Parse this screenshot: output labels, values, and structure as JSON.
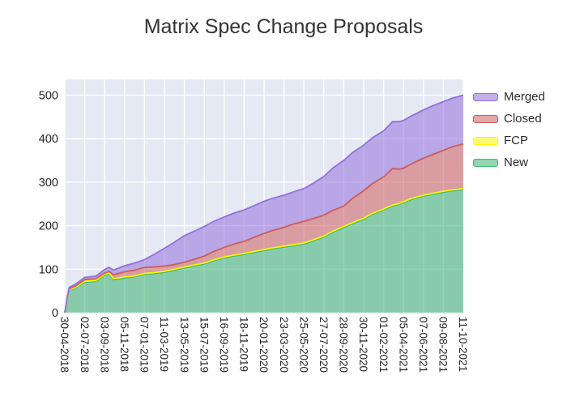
{
  "title": "Matrix Spec Change Proposals",
  "chart_data": {
    "type": "area",
    "stacked": true,
    "title": "Matrix Spec Change Proposals",
    "xlabel": "",
    "ylabel": "",
    "x": [
      "30-04-2018",
      "07-05-2018",
      "14-05-2018",
      "04-06-2018",
      "02-07-2018",
      "06-08-2018",
      "03-09-2018",
      "17-09-2018",
      "01-10-2018",
      "05-11-2018",
      "03-12-2018",
      "07-01-2019",
      "04-02-2019",
      "11-03-2019",
      "08-04-2019",
      "13-05-2019",
      "10-06-2019",
      "15-07-2019",
      "12-08-2019",
      "16-09-2019",
      "14-10-2019",
      "18-11-2019",
      "16-12-2019",
      "20-01-2020",
      "17-02-2020",
      "23-03-2020",
      "20-04-2020",
      "25-05-2020",
      "22-06-2020",
      "27-07-2020",
      "24-08-2020",
      "28-09-2020",
      "26-10-2020",
      "30-11-2020",
      "28-12-2020",
      "01-02-2021",
      "01-03-2021",
      "22-03-2021",
      "05-04-2021",
      "03-05-2021",
      "07-06-2021",
      "05-07-2021",
      "09-08-2021",
      "06-09-2021",
      "11-10-2021"
    ],
    "series": [
      {
        "name": "New",
        "color": "#3CB371",
        "values": [
          0,
          30,
          52,
          58,
          70,
          72,
          86,
          89,
          76,
          80,
          82,
          88,
          90,
          93,
          97,
          103,
          107,
          112,
          119,
          126,
          130,
          134,
          138,
          143,
          147,
          151,
          154,
          158,
          165,
          174,
          185,
          196,
          205,
          215,
          226,
          236,
          245,
          249,
          253,
          261,
          268,
          272,
          277,
          280,
          283
        ]
      },
      {
        "name": "FCP",
        "color": "#F8F800",
        "values": [
          0,
          0,
          1,
          1,
          2,
          2,
          2,
          2,
          2,
          2,
          2,
          2,
          2,
          2,
          2,
          2,
          2,
          2,
          2,
          2,
          2,
          2,
          2,
          2,
          2,
          2,
          2,
          2,
          2,
          2,
          2,
          2,
          2,
          2,
          2,
          2,
          2,
          2,
          2,
          2,
          2,
          2,
          2,
          2,
          2
        ]
      },
      {
        "name": "Closed",
        "color": "#CD5C5C",
        "values": [
          0,
          1,
          2,
          3,
          4,
          4,
          3,
          4,
          9,
          12,
          13,
          14,
          13,
          12,
          11,
          11,
          13,
          16,
          19,
          22,
          25,
          28,
          32,
          37,
          40,
          43,
          47,
          50,
          49,
          48,
          48,
          47,
          56,
          63,
          69,
          74,
          84,
          79,
          77,
          80,
          85,
          89,
          94,
          99,
          103
        ]
      },
      {
        "name": "Merged",
        "color": "#9370DB",
        "values": [
          0,
          1,
          3,
          4,
          5,
          6,
          8,
          9,
          11,
          14,
          16,
          18,
          28,
          41,
          50,
          61,
          64,
          68,
          69,
          70,
          71,
          72,
          73,
          74,
          74,
          74,
          74,
          75,
          81,
          89,
          97,
          105,
          105,
          105,
          105,
          106,
          108,
          109,
          110,
          110,
          111,
          112,
          112,
          112,
          112
        ]
      }
    ],
    "legend_entries_top_to_bottom": [
      "Merged",
      "Closed",
      "FCP",
      "New"
    ],
    "legend_position": "outside-top-right",
    "x_tick_labels": [
      "30-04-2018",
      "02-07-2018",
      "03-09-2018",
      "05-11-2018",
      "07-01-2019",
      "11-03-2019",
      "13-05-2019",
      "15-07-2019",
      "16-09-2019",
      "18-11-2019",
      "20-01-2020",
      "23-03-2020",
      "25-05-2020",
      "27-07-2020",
      "28-09-2020",
      "30-11-2020",
      "01-02-2021",
      "05-04-2021",
      "07-06-2021",
      "09-08-2021",
      "11-10-2021"
    ],
    "y_ticks": [
      "0",
      "100",
      "200",
      "300",
      "400",
      "500"
    ],
    "ylim": [
      0,
      537
    ],
    "grid": true,
    "plot_bg_color": "#E4E9F3",
    "grid_color": "#FFFFFF",
    "fill_alpha": 0.55,
    "tick_label_color": "#262626",
    "title_color": "#333333"
  }
}
